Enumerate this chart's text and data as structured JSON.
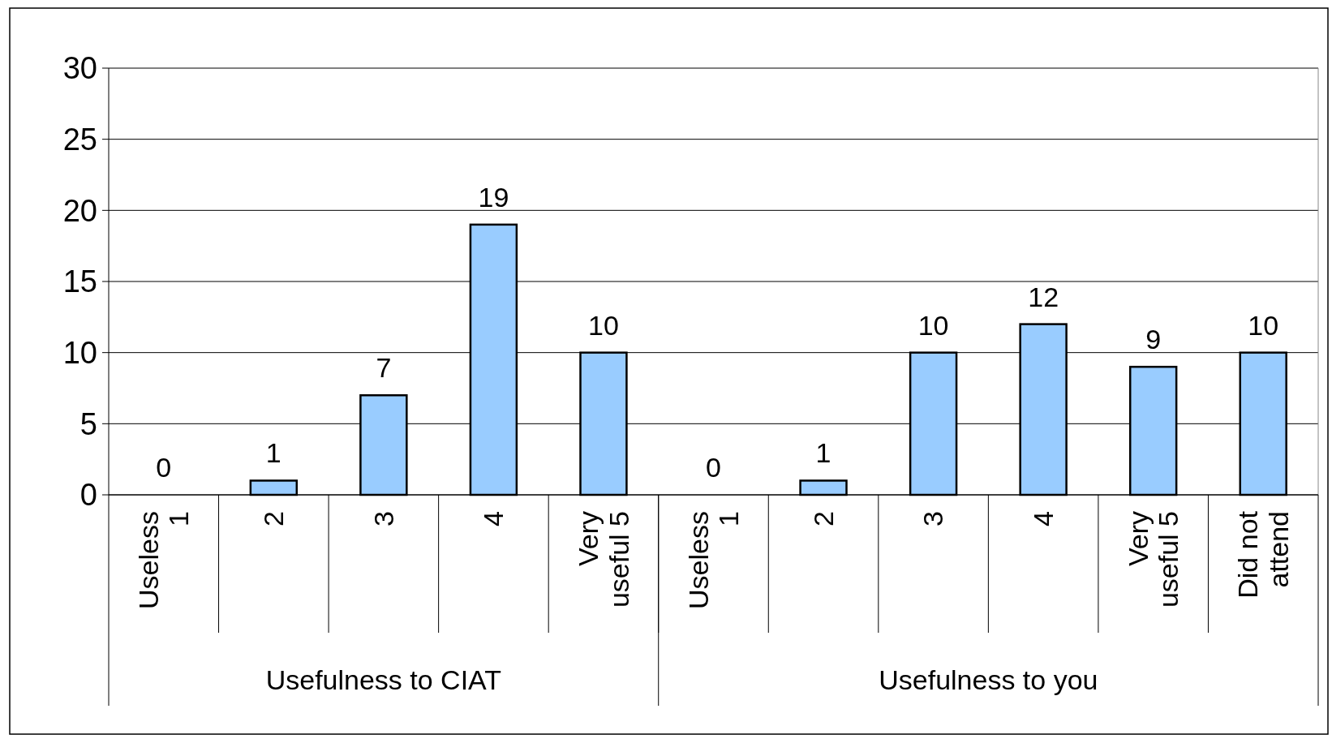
{
  "chart_data": {
    "type": "bar",
    "categories": [
      "Useless 1",
      "2",
      "3",
      "4",
      "Very useful 5",
      "Useless 1",
      "2",
      "3",
      "4",
      "Very useful 5",
      "Did not attend"
    ],
    "values": [
      0,
      1,
      7,
      19,
      10,
      0,
      1,
      10,
      12,
      9,
      10
    ],
    "color": "#99ccff",
    "ylim": [
      0,
      30
    ],
    "yticks": [
      0,
      5,
      10,
      15,
      20,
      25,
      30
    ],
    "grid": "y",
    "data_labels": true,
    "annotations": [
      "Usefulness to CIAT",
      "Usefulness to you"
    ]
  }
}
